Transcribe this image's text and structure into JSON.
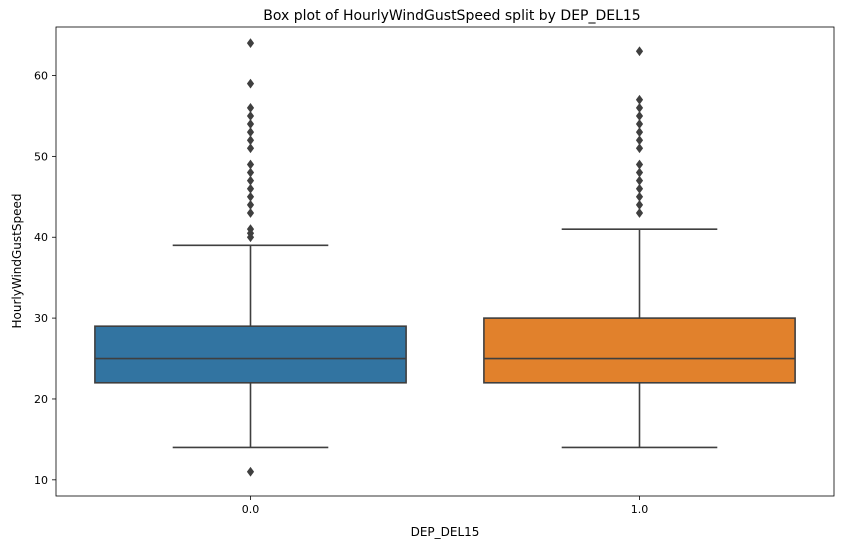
{
  "chart_data": {
    "type": "box",
    "title": "Box plot of HourlyWindGustSpeed split by DEP_DEL15",
    "xlabel": "DEP_DEL15",
    "ylabel": "HourlyWindGustSpeed",
    "categories": [
      "0.0",
      "1.0"
    ],
    "ylim": [
      8,
      66
    ],
    "yticks": [
      10,
      20,
      30,
      40,
      50,
      60
    ],
    "grid": false,
    "boxes": [
      {
        "category": "0.0",
        "color": "#3274a1",
        "whisker_low": 14,
        "q1": 22,
        "median": 25,
        "q3": 29,
        "whisker_high": 39,
        "outliers": [
          11,
          40,
          40.5,
          41,
          43,
          44,
          45,
          46,
          47,
          48,
          49,
          51,
          52,
          53,
          54,
          55,
          56,
          59,
          64
        ]
      },
      {
        "category": "1.0",
        "color": "#e1812c",
        "whisker_low": 14,
        "q1": 22,
        "median": 25,
        "q3": 30,
        "whisker_high": 41,
        "outliers": [
          43,
          44,
          45,
          46,
          47,
          48,
          49,
          51,
          52,
          53,
          54,
          55,
          56,
          57,
          63
        ]
      }
    ]
  }
}
